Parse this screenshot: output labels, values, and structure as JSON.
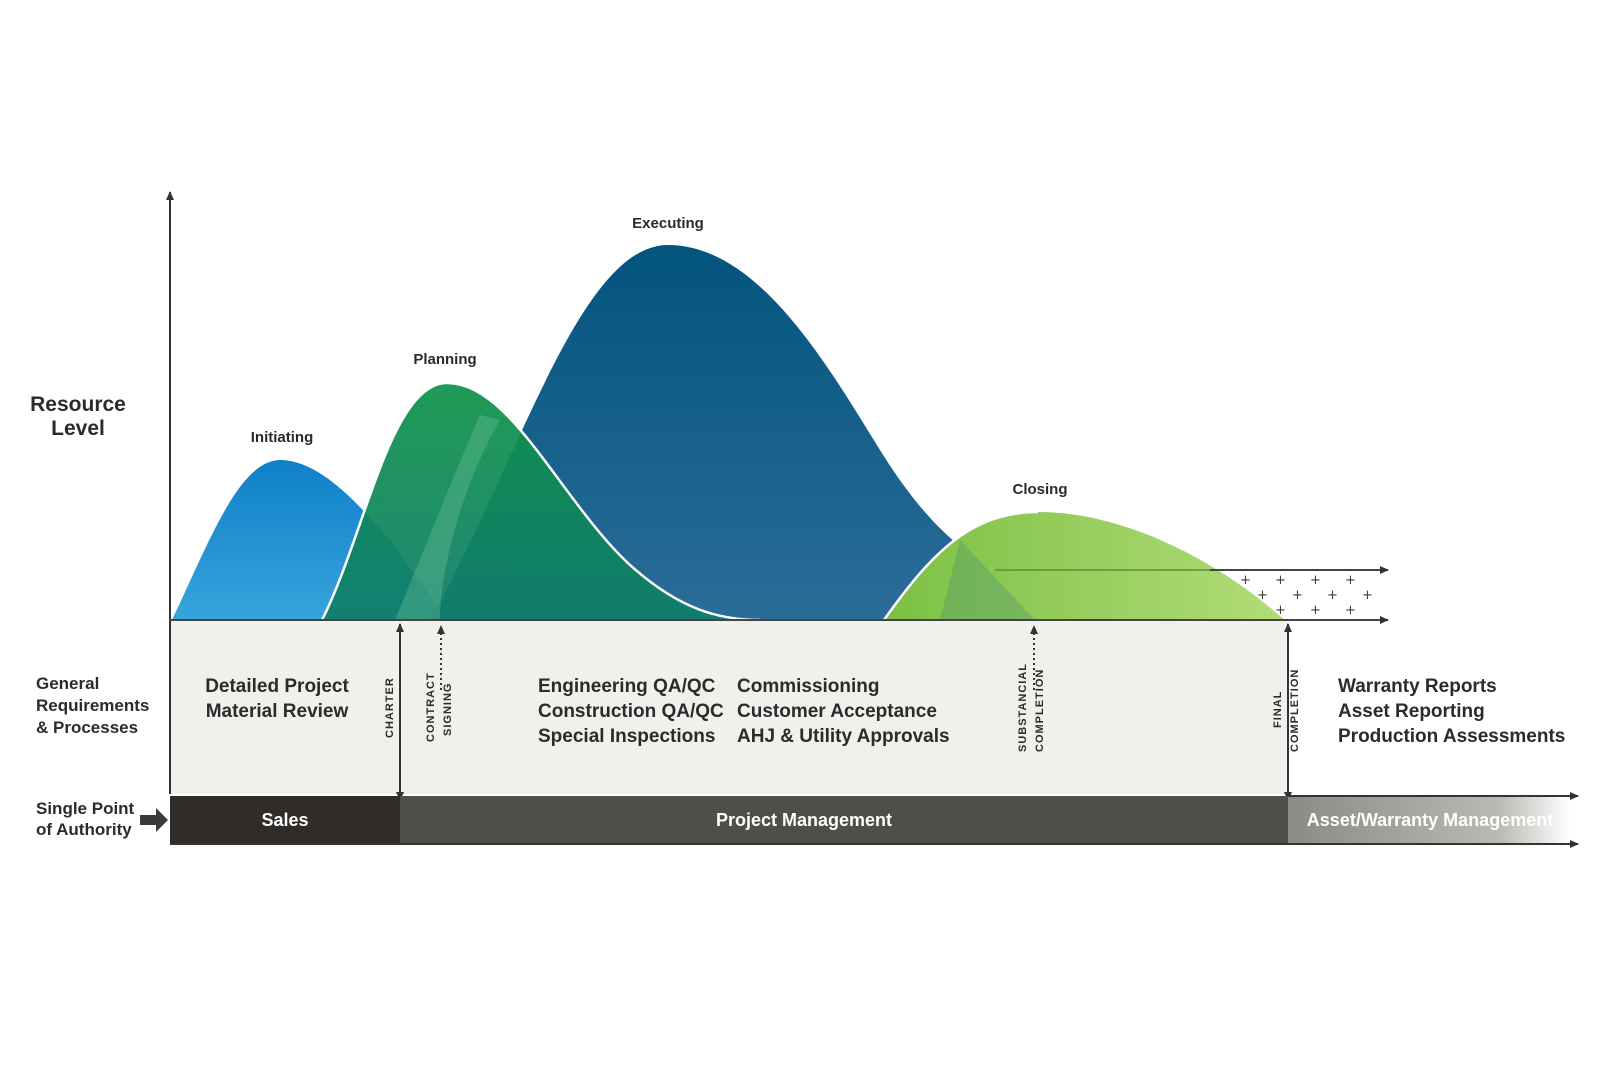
{
  "axis": {
    "y_title_line1": "Resource",
    "y_title_line2": "Level"
  },
  "phases": {
    "initiating": "Initiating",
    "planning": "Planning",
    "executing": "Executing",
    "closing": "Closing"
  },
  "rows": {
    "general_line1": "General",
    "general_line2": "Requirements",
    "general_line3": "& Processes",
    "authority_line1": "Single Point",
    "authority_line2": "of Authority"
  },
  "requirements": {
    "sales_line1": "Detailed Project",
    "sales_line2": "Material Review",
    "qa_line1": "Engineering QA/QC",
    "qa_line2": "Construction QA/QC",
    "qa_line3": "Special Inspections",
    "comm_line1": "Commissioning",
    "comm_line2": "Customer Acceptance",
    "comm_line3": "AHJ & Utility Approvals",
    "warranty_line1": "Warranty Reports",
    "warranty_line2": "Asset Reporting",
    "warranty_line3": "Production Assessments"
  },
  "milestones": {
    "charter": "CHARTER",
    "contract_line1": "CONTRACT",
    "contract_line2": "SIGNING",
    "substantial_line1": "SUBSTANCIAL",
    "substantial_line2": "COMPLETION",
    "final_line1": "FINAL",
    "final_line2": "COMPLETION"
  },
  "authority_bar": {
    "sales": "Sales",
    "project_management": "Project Management",
    "asset_warranty": "Asset/Warranty Management"
  },
  "colors": {
    "initiating": "#1488cf",
    "planning": "#0e8a4c",
    "executing": "#055a8a",
    "closing": "#8bc94a",
    "panel": "#f0f0ec",
    "bar_dark": "#2f2c2a",
    "bar_mid": "#4e4f48",
    "bar_light": "#8a8b85"
  }
}
